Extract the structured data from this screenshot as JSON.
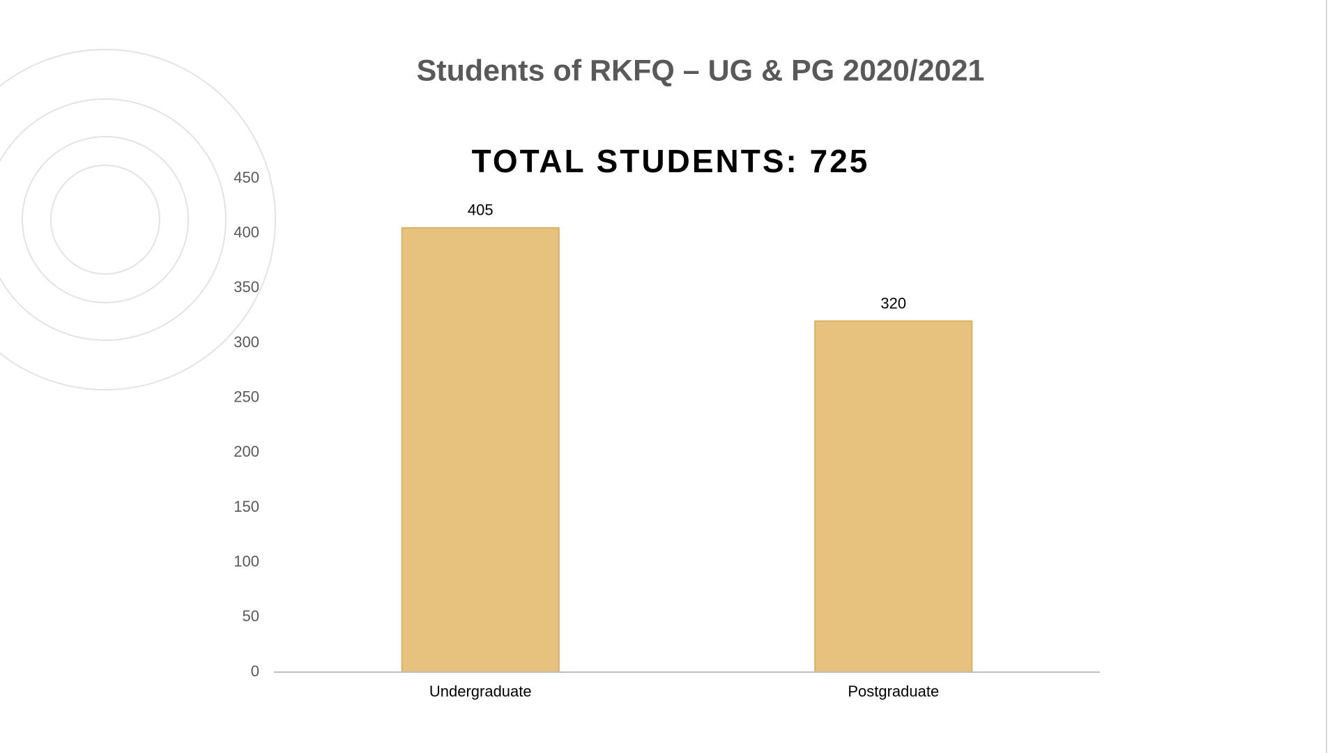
{
  "chart_data": {
    "type": "bar",
    "title": "Students of RKFQ – UG & PG 2020/2021",
    "subtitle": "TOTAL STUDENTS: 725",
    "categories": [
      "Undergraduate",
      "Postgraduate"
    ],
    "values": [
      405,
      320
    ],
    "color": "#e6c27e",
    "ylim": [
      0,
      450
    ],
    "yticks": [
      0,
      50,
      100,
      150,
      200,
      250,
      300,
      350,
      400,
      450
    ],
    "grid": false
  }
}
